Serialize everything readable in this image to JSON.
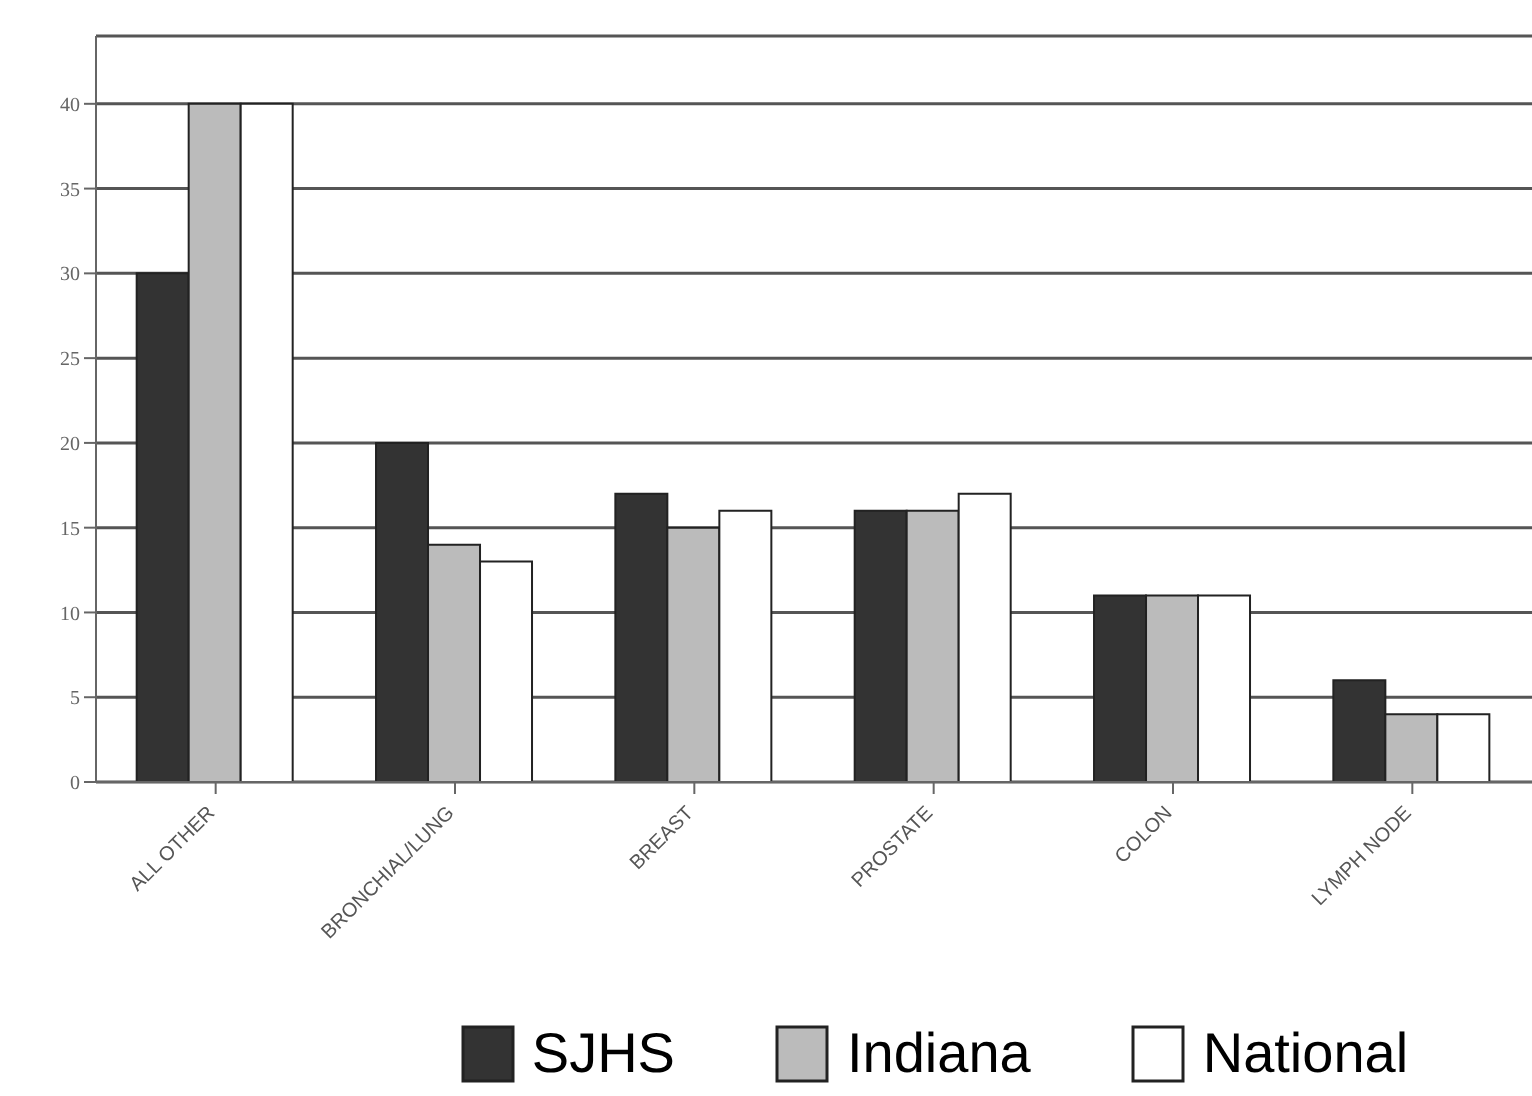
{
  "chart_data": {
    "type": "bar",
    "categories": [
      "ALL OTHER",
      "BRONCHIAL/LUNG",
      "BREAST",
      "PROSTATE",
      "COLON",
      "LYMPH NODE"
    ],
    "series": [
      {
        "name": "SJHS",
        "color": "#333333",
        "values": [
          30,
          20,
          17,
          16,
          11,
          6
        ]
      },
      {
        "name": "Indiana",
        "color": "#bbbbbb",
        "values": [
          40,
          14,
          15,
          16,
          11,
          4
        ]
      },
      {
        "name": "National",
        "color": "#ffffff",
        "values": [
          40,
          13,
          16,
          17,
          11,
          4
        ]
      }
    ],
    "ylim": [
      0,
      44
    ],
    "yticks": [
      0,
      5,
      10,
      15,
      20,
      25,
      30,
      35,
      40
    ],
    "grid": "y",
    "legend": "bottom"
  }
}
